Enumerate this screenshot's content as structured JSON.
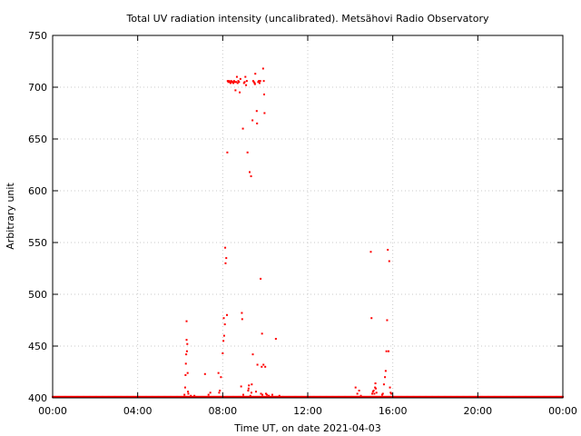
{
  "chart_data": {
    "type": "scatter",
    "title": "Total UV radiation intensity (uncalibrated). Metsähovi Radio Observatory",
    "xlabel": "Time UT, on date 2021-04-03",
    "ylabel": "Arbitrary unit",
    "xlim": [
      "00:00",
      "24:00"
    ],
    "ylim": [
      400,
      750
    ],
    "xticks": [
      "00:00",
      "04:00",
      "08:00",
      "12:00",
      "16:00",
      "20:00",
      "00:00"
    ],
    "yticks": [
      400,
      450,
      500,
      550,
      600,
      650,
      700,
      750
    ],
    "grid": true,
    "marker_color": "#ff0000",
    "baseline": {
      "from": "00:00",
      "to": "24:00",
      "value": 401
    },
    "series": [
      {
        "points": [
          [
            "06:12",
            403
          ],
          [
            "06:14",
            410
          ],
          [
            "06:15",
            422
          ],
          [
            "06:16",
            433
          ],
          [
            "06:17",
            442
          ],
          [
            "06:18",
            456
          ],
          [
            "06:18",
            474
          ],
          [
            "06:19",
            445
          ],
          [
            "06:20",
            452
          ],
          [
            "06:21",
            424
          ],
          [
            "06:22",
            406
          ],
          [
            "06:23",
            404
          ],
          [
            "06:30",
            402
          ],
          [
            "06:40",
            402
          ],
          [
            "07:10",
            423
          ],
          [
            "07:20",
            403
          ],
          [
            "07:25",
            405
          ],
          [
            "07:48",
            424
          ],
          [
            "07:50",
            405
          ],
          [
            "07:52",
            407
          ],
          [
            "07:55",
            420
          ],
          [
            "08:00",
            443
          ],
          [
            "08:02",
            455
          ],
          [
            "08:03",
            477
          ],
          [
            "08:04",
            460
          ],
          [
            "08:06",
            471
          ],
          [
            "08:07",
            545
          ],
          [
            "08:08",
            530
          ],
          [
            "08:10",
            535
          ],
          [
            "08:12",
            480
          ],
          [
            "08:13",
            637
          ],
          [
            "08:14",
            706
          ],
          [
            "08:16",
            705
          ],
          [
            "08:18",
            706
          ],
          [
            "08:20",
            705
          ],
          [
            "08:22",
            704
          ],
          [
            "08:24",
            706
          ],
          [
            "08:26",
            705
          ],
          [
            "08:28",
            705
          ],
          [
            "08:30",
            704
          ],
          [
            "08:32",
            706
          ],
          [
            "08:34",
            705
          ],
          [
            "08:36",
            697
          ],
          [
            "08:38",
            705
          ],
          [
            "08:40",
            710
          ],
          [
            "08:42",
            704
          ],
          [
            "08:44",
            706
          ],
          [
            "08:46",
            705
          ],
          [
            "08:48",
            695
          ],
          [
            "08:50",
            708
          ],
          [
            "08:52",
            411
          ],
          [
            "08:54",
            482
          ],
          [
            "08:55",
            476
          ],
          [
            "08:57",
            660
          ],
          [
            "08:58",
            403
          ],
          [
            "09:00",
            704
          ],
          [
            "09:02",
            705
          ],
          [
            "09:04",
            710
          ],
          [
            "09:06",
            702
          ],
          [
            "09:08",
            706
          ],
          [
            "09:10",
            637
          ],
          [
            "09:12",
            407
          ],
          [
            "09:13",
            409
          ],
          [
            "09:14",
            412
          ],
          [
            "09:16",
            618
          ],
          [
            "09:18",
            402
          ],
          [
            "09:20",
            614
          ],
          [
            "09:21",
            405
          ],
          [
            "09:22",
            413
          ],
          [
            "09:24",
            668
          ],
          [
            "09:25",
            442
          ],
          [
            "09:26",
            706
          ],
          [
            "09:28",
            705
          ],
          [
            "09:30",
            704
          ],
          [
            "09:31",
            703
          ],
          [
            "09:32",
            713
          ],
          [
            "09:34",
            406
          ],
          [
            "09:36",
            677
          ],
          [
            "09:37",
            665
          ],
          [
            "09:38",
            432
          ],
          [
            "09:40",
            705
          ],
          [
            "09:42",
            706
          ],
          [
            "09:44",
            704
          ],
          [
            "09:46",
            706
          ],
          [
            "09:47",
            515
          ],
          [
            "09:48",
            404
          ],
          [
            "09:50",
            430
          ],
          [
            "09:51",
            462
          ],
          [
            "09:52",
            403
          ],
          [
            "09:54",
            718
          ],
          [
            "09:55",
            432
          ],
          [
            "09:56",
            706
          ],
          [
            "09:57",
            693
          ],
          [
            "09:58",
            675
          ],
          [
            "10:00",
            430
          ],
          [
            "10:02",
            404
          ],
          [
            "10:05",
            403
          ],
          [
            "10:10",
            402
          ],
          [
            "10:20",
            403
          ],
          [
            "10:30",
            457
          ],
          [
            "10:40",
            402
          ],
          [
            "14:15",
            410
          ],
          [
            "14:20",
            404
          ],
          [
            "14:25",
            407
          ],
          [
            "14:30",
            402
          ],
          [
            "14:58",
            541
          ],
          [
            "15:00",
            477
          ],
          [
            "15:02",
            404
          ],
          [
            "15:04",
            406
          ],
          [
            "15:06",
            407
          ],
          [
            "15:08",
            404
          ],
          [
            "15:10",
            410
          ],
          [
            "15:11",
            414
          ],
          [
            "15:12",
            409
          ],
          [
            "15:14",
            405
          ],
          [
            "15:30",
            403
          ],
          [
            "15:32",
            404
          ],
          [
            "15:35",
            413
          ],
          [
            "15:38",
            420
          ],
          [
            "15:40",
            426
          ],
          [
            "15:42",
            445
          ],
          [
            "15:44",
            475
          ],
          [
            "15:46",
            543
          ],
          [
            "15:48",
            445
          ],
          [
            "15:50",
            532
          ],
          [
            "15:52",
            410
          ],
          [
            "15:54",
            405
          ],
          [
            "15:56",
            404
          ]
        ]
      }
    ]
  }
}
